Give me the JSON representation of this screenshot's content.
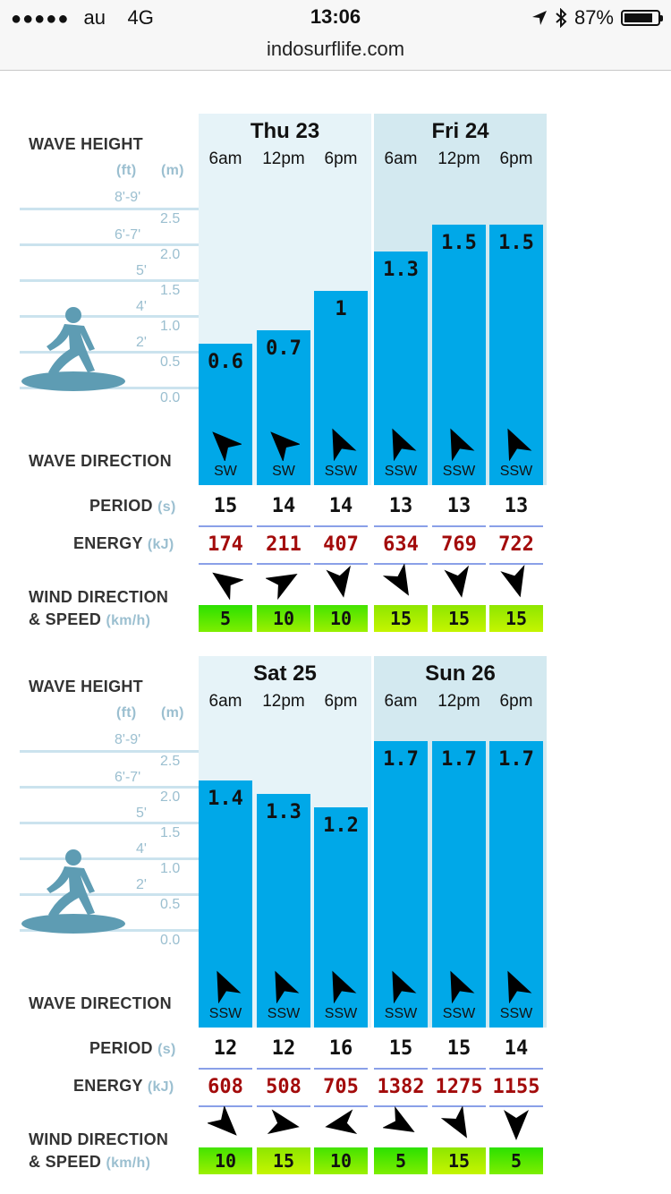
{
  "status_bar": {
    "signal": "●●●●●",
    "carrier": "au",
    "network": "4G",
    "time": "13:06",
    "battery_percent": "87%",
    "battery_level": 0.87
  },
  "url_bar": {
    "domain": "indosurflife.com"
  },
  "labels": {
    "wave_height": "WAVE HEIGHT",
    "unit_ft": "(ft)",
    "unit_m": "(m)",
    "wave_direction": "WAVE DIRECTION",
    "period": "PERIOD",
    "period_unit": "(s)",
    "energy": "ENERGY",
    "energy_unit": "(kJ)",
    "wind_line1": "WIND DIRECTION",
    "wind_line2": "& SPEED",
    "wind_unit": "(km/h)"
  },
  "scale": {
    "ft": [
      "8'-9'",
      "6'-7'",
      "5'",
      "4'",
      "2'"
    ],
    "m": [
      "2.5",
      "2.0",
      "1.5",
      "1.0",
      "0.5",
      "0.0"
    ]
  },
  "colors": {
    "bar": "#00a8e8",
    "energy_text": "#a30b0b",
    "day_light": "#e6f3f8",
    "day_dark": "#d3e9f0"
  },
  "forecast_blocks": [
    {
      "days": [
        {
          "title": "Thu 23",
          "slots": [
            {
              "time": "6am",
              "wave_height_m": "0.6",
              "wave_dir": "SW",
              "period": "15",
              "energy": "174",
              "wind_speed": "5"
            },
            {
              "time": "12pm",
              "wave_height_m": "0.7",
              "wave_dir": "SW",
              "period": "14",
              "energy": "211",
              "wind_speed": "10"
            },
            {
              "time": "6pm",
              "wave_height_m": "1",
              "wave_dir": "SSW",
              "period": "14",
              "energy": "407",
              "wind_speed": "10"
            }
          ]
        },
        {
          "title": "Fri 24",
          "slots": [
            {
              "time": "6am",
              "wave_height_m": "1.3",
              "wave_dir": "SSW",
              "period": "13",
              "energy": "634",
              "wind_speed": "15"
            },
            {
              "time": "12pm",
              "wave_height_m": "1.5",
              "wave_dir": "SSW",
              "period": "13",
              "energy": "769",
              "wind_speed": "15"
            },
            {
              "time": "6pm",
              "wave_height_m": "1.5",
              "wave_dir": "SSW",
              "period": "13",
              "energy": "722",
              "wind_speed": "15"
            }
          ]
        }
      ]
    },
    {
      "days": [
        {
          "title": "Sat 25",
          "slots": [
            {
              "time": "6am",
              "wave_height_m": "1.4",
              "wave_dir": "SSW",
              "period": "12",
              "energy": "608",
              "wind_speed": "10"
            },
            {
              "time": "12pm",
              "wave_height_m": "1.3",
              "wave_dir": "SSW",
              "period": "12",
              "energy": "508",
              "wind_speed": "15"
            },
            {
              "time": "6pm",
              "wave_height_m": "1.2",
              "wave_dir": "SSW",
              "period": "16",
              "energy": "705",
              "wind_speed": "10"
            }
          ]
        },
        {
          "title": "Sun 26",
          "slots": [
            {
              "time": "6am",
              "wave_height_m": "1.7",
              "wave_dir": "SSW",
              "period": "15",
              "energy": "1382",
              "wind_speed": "5"
            },
            {
              "time": "12pm",
              "wave_height_m": "1.7",
              "wave_dir": "SSW",
              "period": "15",
              "energy": "1275",
              "wind_speed": "15"
            },
            {
              "time": "6pm",
              "wave_height_m": "1.7",
              "wave_dir": "SSW",
              "period": "14",
              "energy": "1155",
              "wind_speed": "5"
            }
          ]
        }
      ]
    }
  ]
}
